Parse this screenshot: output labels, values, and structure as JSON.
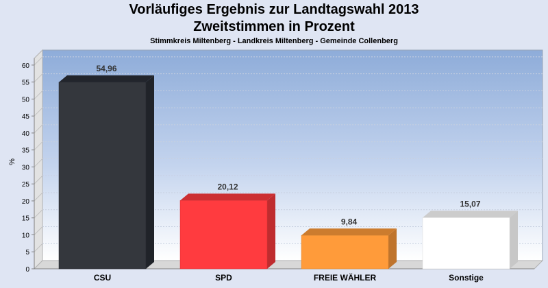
{
  "chart_data": {
    "type": "bar",
    "title": "Vorläufiges Ergebnis zur Landtagswahl 2013",
    "subtitle": "Zweitstimmen in Prozent",
    "caption": "Stimmkreis Miltenberg - Landkreis Miltenberg - Gemeinde Collenberg",
    "xlabel": "",
    "ylabel": "%",
    "ylim": [
      0,
      62
    ],
    "yticks": [
      0,
      5,
      10,
      15,
      20,
      25,
      30,
      35,
      40,
      45,
      50,
      55,
      60
    ],
    "grid": true,
    "categories": [
      "CSU",
      "SPD",
      "FREIE WÄHLER",
      "Sonstige"
    ],
    "values": [
      54.96,
      20.12,
      9.84,
      15.07
    ],
    "labels": [
      "54,96",
      "20,12",
      "9,84",
      "15,07"
    ],
    "colors": [
      "#2a2e37",
      "#ff3b3f",
      "#ff9b3a",
      "#ffffff"
    ]
  }
}
